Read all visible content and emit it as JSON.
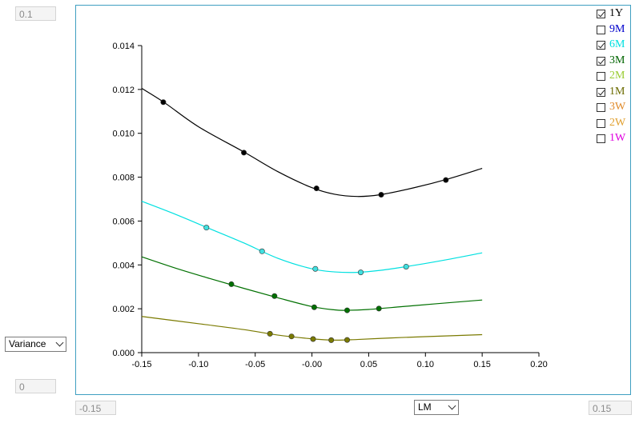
{
  "controls": {
    "y_max_input": "0.1",
    "y_min_input": "0",
    "x_min_input": "-0.15",
    "x_max_input": "0.15",
    "y_measure_select": "Variance",
    "x_measure_select": "LM"
  },
  "legend": [
    {
      "label": "1Y",
      "checked": true,
      "color": "#000000"
    },
    {
      "label": "9M",
      "checked": false,
      "color": "#0000cc"
    },
    {
      "label": "6M",
      "checked": true,
      "color": "#00e0e0"
    },
    {
      "label": "3M",
      "checked": true,
      "color": "#006400"
    },
    {
      "label": "2M",
      "checked": false,
      "color": "#9acd32"
    },
    {
      "label": "1M",
      "checked": true,
      "color": "#6b6b00"
    },
    {
      "label": "3W",
      "checked": false,
      "color": "#e08a2a"
    },
    {
      "label": "2W",
      "checked": false,
      "color": "#e0a030"
    },
    {
      "label": "1W",
      "checked": false,
      "color": "#e000e0"
    }
  ],
  "chart_data": {
    "type": "line",
    "title": "",
    "xlabel": "",
    "ylabel": "",
    "xlim": [
      -0.15,
      0.2
    ],
    "ylim": [
      0,
      0.014
    ],
    "xticks": [
      "-0.15",
      "-0.10",
      "-0.05",
      "-0.00",
      "0.05",
      "0.10",
      "0.15",
      "0.20"
    ],
    "yticks": [
      "0.000",
      "0.002",
      "0.004",
      "0.006",
      "0.008",
      "0.010",
      "0.012",
      "0.014"
    ],
    "grid": false,
    "legend_position": "top-right",
    "series": [
      {
        "name": "1Y",
        "color": "#000000",
        "point_color": "#000000",
        "line": [
          [
            -0.15,
            0.01205
          ],
          [
            -0.13,
            0.0114
          ],
          [
            -0.1,
            0.0103
          ],
          [
            -0.06,
            0.00915
          ],
          [
            -0.03,
            0.00825
          ],
          [
            0.0,
            0.00752
          ],
          [
            0.02,
            0.00722
          ],
          [
            0.04,
            0.00712
          ],
          [
            0.06,
            0.0072
          ],
          [
            0.09,
            0.00752
          ],
          [
            0.12,
            0.00792
          ],
          [
            0.15,
            0.0084
          ]
        ],
        "points": [
          [
            -0.131,
            0.01142
          ],
          [
            -0.06,
            0.00912
          ],
          [
            0.004,
            0.00749
          ],
          [
            0.061,
            0.0072
          ],
          [
            0.118,
            0.00787
          ]
        ]
      },
      {
        "name": "6M",
        "color": "#00e0e0",
        "point_color": "#40e0e0",
        "line": [
          [
            -0.15,
            0.0069
          ],
          [
            -0.12,
            0.0063
          ],
          [
            -0.09,
            0.00565
          ],
          [
            -0.06,
            0.005
          ],
          [
            -0.03,
            0.0043
          ],
          [
            0.0,
            0.00382
          ],
          [
            0.02,
            0.00368
          ],
          [
            0.04,
            0.00366
          ],
          [
            0.06,
            0.00375
          ],
          [
            0.09,
            0.00398
          ],
          [
            0.12,
            0.00425
          ],
          [
            0.15,
            0.00455
          ]
        ],
        "points": [
          [
            -0.093,
            0.0057
          ],
          [
            -0.044,
            0.00462
          ],
          [
            0.003,
            0.00382
          ],
          [
            0.043,
            0.00366
          ],
          [
            0.083,
            0.00392
          ]
        ]
      },
      {
        "name": "3M",
        "color": "#007000",
        "point_color": "#007000",
        "line": [
          [
            -0.15,
            0.00437
          ],
          [
            -0.12,
            0.00385
          ],
          [
            -0.09,
            0.00338
          ],
          [
            -0.06,
            0.00293
          ],
          [
            -0.03,
            0.0025
          ],
          [
            0.0,
            0.0021
          ],
          [
            0.02,
            0.00195
          ],
          [
            0.03,
            0.00193
          ],
          [
            0.05,
            0.00197
          ],
          [
            0.08,
            0.0021
          ],
          [
            0.11,
            0.00223
          ],
          [
            0.15,
            0.0024
          ]
        ],
        "points": [
          [
            -0.071,
            0.00312
          ],
          [
            -0.033,
            0.00258
          ],
          [
            0.002,
            0.00207
          ],
          [
            0.031,
            0.00193
          ],
          [
            0.059,
            0.00201
          ]
        ]
      },
      {
        "name": "1M",
        "color": "#7a7a00",
        "point_color": "#7a7a00",
        "line": [
          [
            -0.15,
            0.00165
          ],
          [
            -0.1,
            0.00132
          ],
          [
            -0.06,
            0.00105
          ],
          [
            -0.03,
            0.0008
          ],
          [
            0.0,
            0.00063
          ],
          [
            0.02,
            0.00057
          ],
          [
            0.04,
            0.0006
          ],
          [
            0.07,
            0.00067
          ],
          [
            0.1,
            0.00073
          ],
          [
            0.15,
            0.00082
          ]
        ],
        "points": [
          [
            -0.037,
            0.00086
          ],
          [
            -0.018,
            0.00074
          ],
          [
            0.001,
            0.00062
          ],
          [
            0.017,
            0.00057
          ],
          [
            0.031,
            0.00058
          ]
        ]
      }
    ]
  }
}
